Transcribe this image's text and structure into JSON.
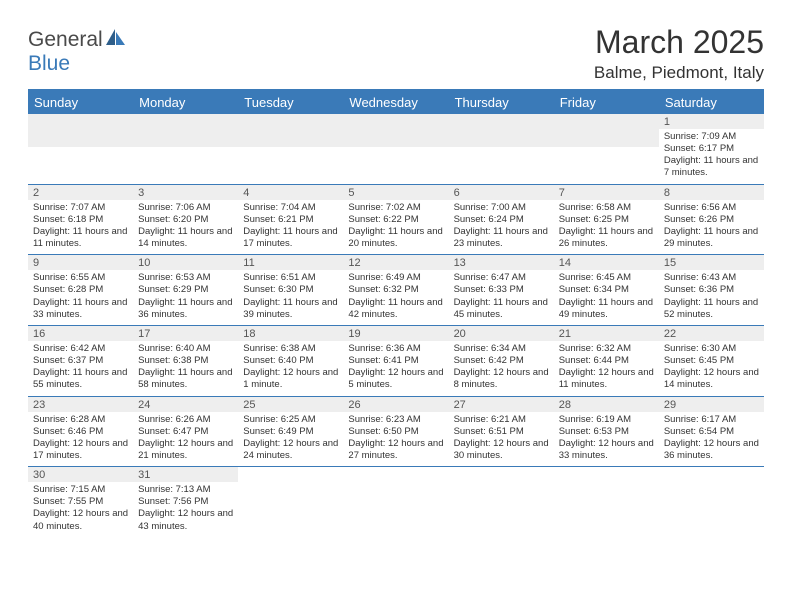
{
  "logo": {
    "text1": "General",
    "text2": "Blue"
  },
  "title": "March 2025",
  "location": "Balme, Piedmont, Italy",
  "colors": {
    "header_bg": "#3a7ab8",
    "header_text": "#ffffff",
    "daynum_bg": "#eeeeee",
    "border": "#3a7ab8",
    "text": "#333333"
  },
  "day_names": [
    "Sunday",
    "Monday",
    "Tuesday",
    "Wednesday",
    "Thursday",
    "Friday",
    "Saturday"
  ],
  "weeks": [
    [
      null,
      null,
      null,
      null,
      null,
      null,
      {
        "n": "1",
        "sunrise": "7:09 AM",
        "sunset": "6:17 PM",
        "daylight": "11 hours and 7 minutes."
      }
    ],
    [
      {
        "n": "2",
        "sunrise": "7:07 AM",
        "sunset": "6:18 PM",
        "daylight": "11 hours and 11 minutes."
      },
      {
        "n": "3",
        "sunrise": "7:06 AM",
        "sunset": "6:20 PM",
        "daylight": "11 hours and 14 minutes."
      },
      {
        "n": "4",
        "sunrise": "7:04 AM",
        "sunset": "6:21 PM",
        "daylight": "11 hours and 17 minutes."
      },
      {
        "n": "5",
        "sunrise": "7:02 AM",
        "sunset": "6:22 PM",
        "daylight": "11 hours and 20 minutes."
      },
      {
        "n": "6",
        "sunrise": "7:00 AM",
        "sunset": "6:24 PM",
        "daylight": "11 hours and 23 minutes."
      },
      {
        "n": "7",
        "sunrise": "6:58 AM",
        "sunset": "6:25 PM",
        "daylight": "11 hours and 26 minutes."
      },
      {
        "n": "8",
        "sunrise": "6:56 AM",
        "sunset": "6:26 PM",
        "daylight": "11 hours and 29 minutes."
      }
    ],
    [
      {
        "n": "9",
        "sunrise": "6:55 AM",
        "sunset": "6:28 PM",
        "daylight": "11 hours and 33 minutes."
      },
      {
        "n": "10",
        "sunrise": "6:53 AM",
        "sunset": "6:29 PM",
        "daylight": "11 hours and 36 minutes."
      },
      {
        "n": "11",
        "sunrise": "6:51 AM",
        "sunset": "6:30 PM",
        "daylight": "11 hours and 39 minutes."
      },
      {
        "n": "12",
        "sunrise": "6:49 AM",
        "sunset": "6:32 PM",
        "daylight": "11 hours and 42 minutes."
      },
      {
        "n": "13",
        "sunrise": "6:47 AM",
        "sunset": "6:33 PM",
        "daylight": "11 hours and 45 minutes."
      },
      {
        "n": "14",
        "sunrise": "6:45 AM",
        "sunset": "6:34 PM",
        "daylight": "11 hours and 49 minutes."
      },
      {
        "n": "15",
        "sunrise": "6:43 AM",
        "sunset": "6:36 PM",
        "daylight": "11 hours and 52 minutes."
      }
    ],
    [
      {
        "n": "16",
        "sunrise": "6:42 AM",
        "sunset": "6:37 PM",
        "daylight": "11 hours and 55 minutes."
      },
      {
        "n": "17",
        "sunrise": "6:40 AM",
        "sunset": "6:38 PM",
        "daylight": "11 hours and 58 minutes."
      },
      {
        "n": "18",
        "sunrise": "6:38 AM",
        "sunset": "6:40 PM",
        "daylight": "12 hours and 1 minute."
      },
      {
        "n": "19",
        "sunrise": "6:36 AM",
        "sunset": "6:41 PM",
        "daylight": "12 hours and 5 minutes."
      },
      {
        "n": "20",
        "sunrise": "6:34 AM",
        "sunset": "6:42 PM",
        "daylight": "12 hours and 8 minutes."
      },
      {
        "n": "21",
        "sunrise": "6:32 AM",
        "sunset": "6:44 PM",
        "daylight": "12 hours and 11 minutes."
      },
      {
        "n": "22",
        "sunrise": "6:30 AM",
        "sunset": "6:45 PM",
        "daylight": "12 hours and 14 minutes."
      }
    ],
    [
      {
        "n": "23",
        "sunrise": "6:28 AM",
        "sunset": "6:46 PM",
        "daylight": "12 hours and 17 minutes."
      },
      {
        "n": "24",
        "sunrise": "6:26 AM",
        "sunset": "6:47 PM",
        "daylight": "12 hours and 21 minutes."
      },
      {
        "n": "25",
        "sunrise": "6:25 AM",
        "sunset": "6:49 PM",
        "daylight": "12 hours and 24 minutes."
      },
      {
        "n": "26",
        "sunrise": "6:23 AM",
        "sunset": "6:50 PM",
        "daylight": "12 hours and 27 minutes."
      },
      {
        "n": "27",
        "sunrise": "6:21 AM",
        "sunset": "6:51 PM",
        "daylight": "12 hours and 30 minutes."
      },
      {
        "n": "28",
        "sunrise": "6:19 AM",
        "sunset": "6:53 PM",
        "daylight": "12 hours and 33 minutes."
      },
      {
        "n": "29",
        "sunrise": "6:17 AM",
        "sunset": "6:54 PM",
        "daylight": "12 hours and 36 minutes."
      }
    ],
    [
      {
        "n": "30",
        "sunrise": "7:15 AM",
        "sunset": "7:55 PM",
        "daylight": "12 hours and 40 minutes."
      },
      {
        "n": "31",
        "sunrise": "7:13 AM",
        "sunset": "7:56 PM",
        "daylight": "12 hours and 43 minutes."
      },
      null,
      null,
      null,
      null,
      null
    ]
  ],
  "labels": {
    "sunrise": "Sunrise:",
    "sunset": "Sunset:",
    "daylight": "Daylight:"
  }
}
